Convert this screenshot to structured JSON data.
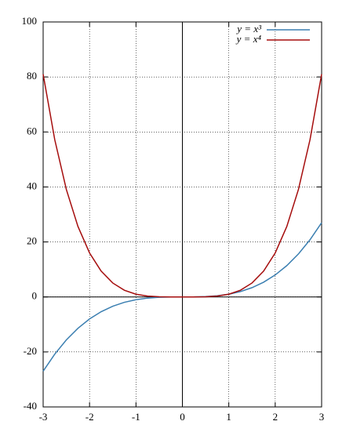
{
  "chart_data": {
    "type": "line",
    "x": [
      -3,
      -2.75,
      -2.5,
      -2.25,
      -2,
      -1.75,
      -1.5,
      -1.25,
      -1,
      -0.75,
      -0.5,
      -0.25,
      0,
      0.25,
      0.5,
      0.75,
      1,
      1.25,
      1.5,
      1.75,
      2,
      2.25,
      2.5,
      2.75,
      3
    ],
    "series": [
      {
        "name": "y = x³",
        "color": "#3b7fb1",
        "values": [
          -27,
          -20.796875,
          -15.625,
          -11.390625,
          -8,
          -5.359375,
          -3.375,
          -1.953125,
          -1,
          -0.421875,
          -0.125,
          -0.015625,
          0,
          0.015625,
          0.125,
          0.421875,
          1,
          1.953125,
          3.375,
          5.359375,
          8,
          11.390625,
          15.625,
          20.796875,
          27
        ]
      },
      {
        "name": "y = x⁴",
        "color": "#a50d0d",
        "values": [
          81,
          57.19140625,
          39.0625,
          25.62890625,
          16,
          9.37890625,
          5.0625,
          2.44140625,
          1,
          0.31640625,
          0.0625,
          0.00390625,
          0,
          0.00390625,
          0.0625,
          0.31640625,
          1,
          2.44140625,
          5.0625,
          9.37890625,
          16,
          25.62890625,
          39.0625,
          57.19140625,
          81
        ]
      }
    ],
    "xlim": [
      -3,
      3
    ],
    "xticks": [
      -3,
      -2,
      -1,
      0,
      1,
      2,
      3
    ],
    "ylim": [
      -40,
      100
    ],
    "yticks": [
      -40,
      -20,
      0,
      20,
      40,
      60,
      80,
      100
    ],
    "grid": true,
    "zeroaxis": true,
    "legend": "top-right"
  }
}
